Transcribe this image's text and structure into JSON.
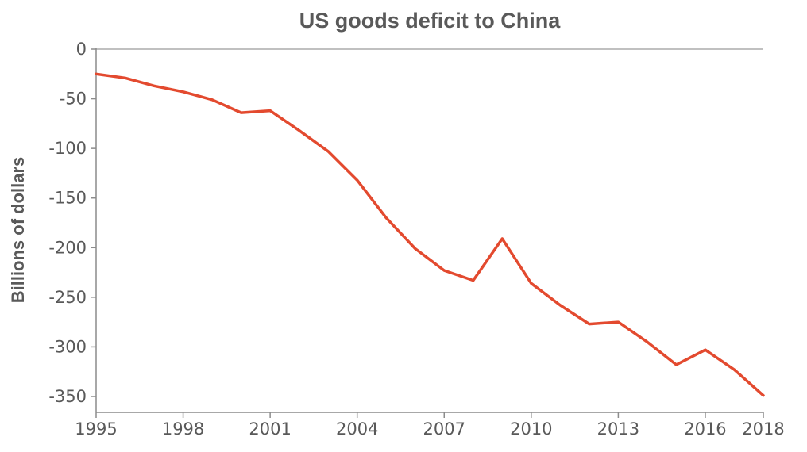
{
  "chart_data": {
    "type": "line",
    "title": "US goods deficit to China",
    "xlabel": "",
    "ylabel": "Billions of dollars",
    "xlim": [
      1995,
      2018
    ],
    "ylim": [
      -366,
      0
    ],
    "x_ticks": [
      1995,
      1998,
      2001,
      2004,
      2007,
      2010,
      2013,
      2016,
      2018
    ],
    "y_ticks": [
      0,
      -50,
      -100,
      -150,
      -200,
      -250,
      -300,
      -350
    ],
    "x": [
      1995,
      1996,
      1997,
      1998,
      1999,
      2000,
      2001,
      2002,
      2003,
      2004,
      2005,
      2006,
      2007,
      2008,
      2009,
      2010,
      2011,
      2012,
      2013,
      2014,
      2015,
      2016,
      2017,
      2018
    ],
    "series": [
      {
        "values": [
          -25,
          -29,
          -37,
          -43,
          -51,
          -64,
          -62,
          -82,
          -103,
          -132,
          -170,
          -201,
          -223,
          -233,
          -191,
          -236,
          -258,
          -277,
          -275,
          -295,
          -318,
          -303,
          -323,
          -349
        ],
        "color": "#e34a2f"
      }
    ],
    "grid": false,
    "legend": "none"
  }
}
